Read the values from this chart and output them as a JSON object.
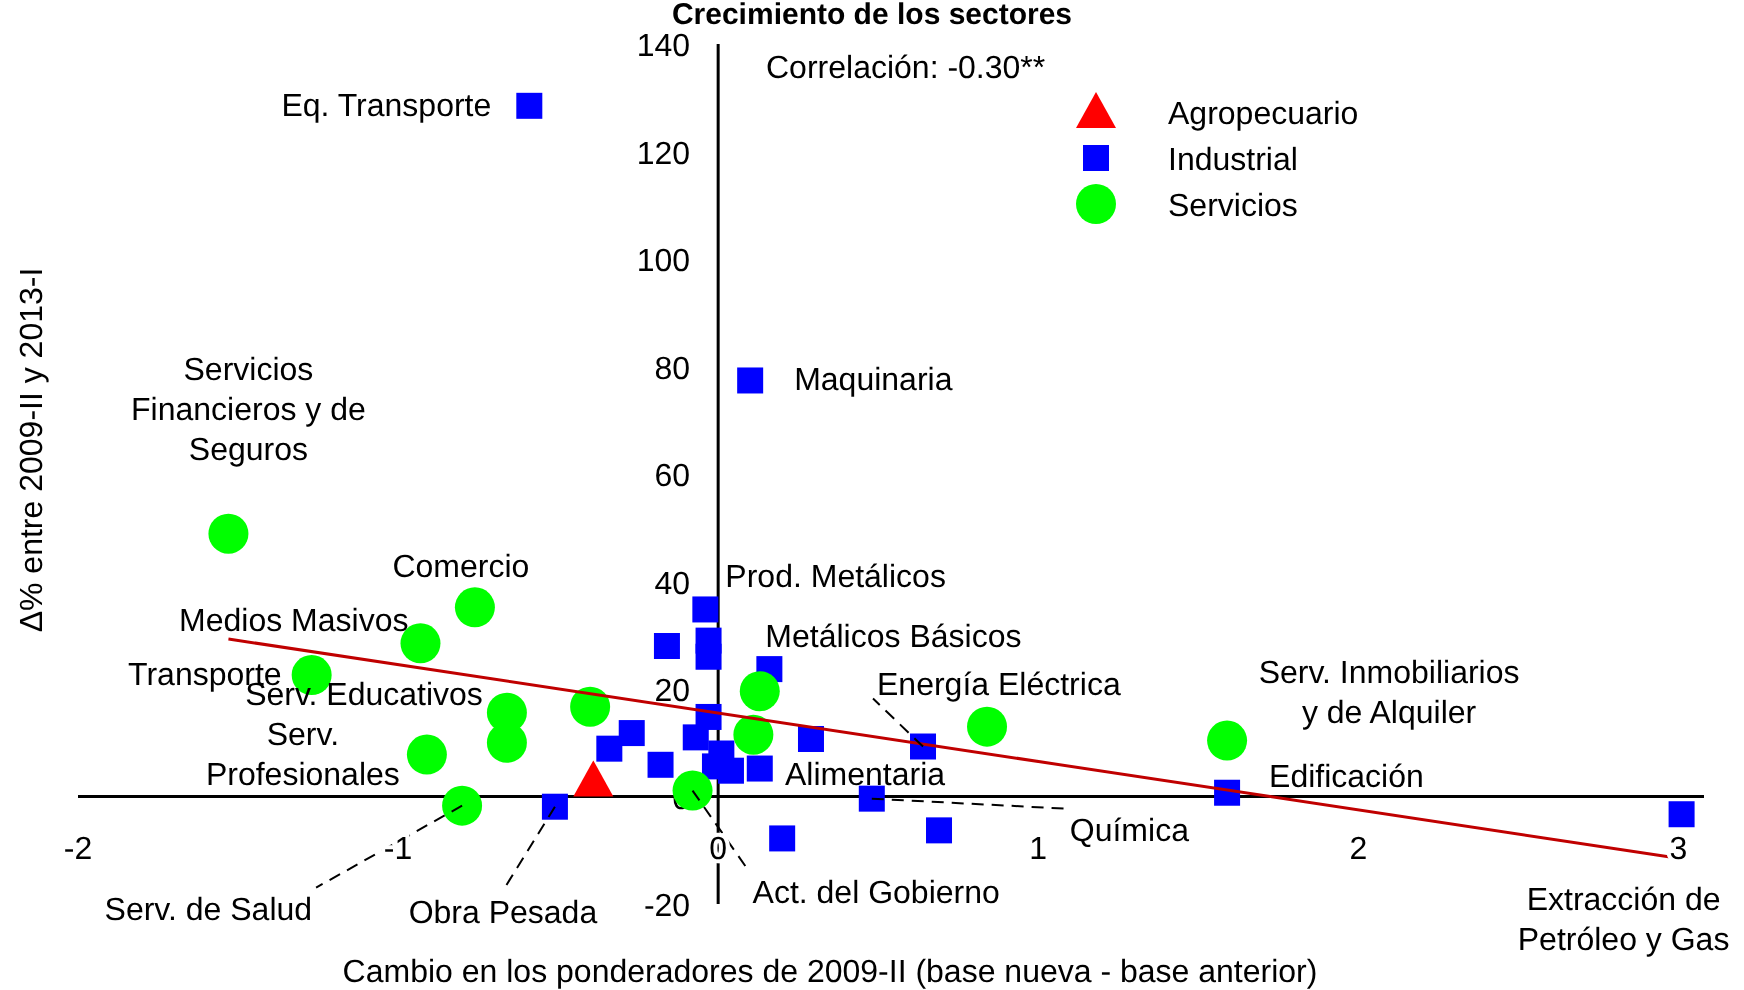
{
  "chart_data": {
    "type": "scatter",
    "title": "Crecimiento de los sectores",
    "xlabel": "Cambio  en los ponderadores de 2009-II (base nueva - base anterior)",
    "ylabel": "Δ% entre 2009-II y 2013-I",
    "xlim": [
      -2,
      3.08
    ],
    "ylim": [
      -20,
      140
    ],
    "xticks": [
      -2,
      -1,
      0,
      1,
      2,
      3
    ],
    "yticks": [
      -20,
      0,
      20,
      40,
      60,
      80,
      100,
      120,
      140
    ],
    "grid": false,
    "legend": "top right",
    "series": [
      {
        "name": "Agropecuario",
        "color": "#ff0000",
        "marker": "triangle",
        "x": [
          -0.39
        ],
        "values": [
          3
        ]
      },
      {
        "name": "Industrial",
        "color": "#0000ff",
        "marker": "square",
        "x": [
          -0.59,
          0.1,
          -0.04,
          -0.16,
          -0.03,
          -0.03,
          0.16,
          -0.03,
          -0.07,
          -0.27,
          -0.34,
          -0.18,
          0.01,
          0.04,
          0.13,
          -0.01,
          -0.51,
          0.2,
          0.29,
          0.48,
          0.69,
          0.64,
          1.59,
          3.01
        ],
        "values": [
          128.5,
          77.4,
          34.8,
          28,
          29,
          26,
          23.7,
          14.8,
          11,
          11.8,
          8.9,
          5.9,
          8,
          4.8,
          5.2,
          5.6,
          -1.9,
          -7.8,
          10.7,
          -0.4,
          -6.3,
          9.3,
          0.7,
          -3.3
        ]
      },
      {
        "name": "Servicios",
        "color": "#00ff00",
        "marker": "circle",
        "x": [
          -1.53,
          -0.76,
          -0.93,
          -1.27,
          -0.66,
          -0.66,
          -0.91,
          -0.8,
          -0.4,
          -0.08,
          0.13,
          0.11,
          0.84,
          1.59
        ],
        "values": [
          48.9,
          35.2,
          28.5,
          22.6,
          15.6,
          10,
          7.8,
          -1.7,
          16.7,
          1.1,
          19.6,
          11.5,
          13,
          10.4
        ]
      },
      {
        "type": "line",
        "color": "#c00000",
        "marker": "none",
        "x": [
          -1.53,
          3
        ],
        "values": [
          29.3,
          -11.5
        ]
      }
    ],
    "annotations": [
      "Correlación: -0.30**",
      {
        "text": "Eq. Transporte",
        "x": -0.59,
        "y": 128.5
      },
      {
        "text": "Maquinaria",
        "x": 0.1,
        "y": 77.4
      },
      {
        "text": "Servicios\nFinancieros y de\nSeguros",
        "x": -1.53,
        "y": 48.9
      },
      {
        "text": "Comercio",
        "x": -0.76,
        "y": 35.2
      },
      {
        "text": "Medios Masivos",
        "x": -0.93,
        "y": 28.5
      },
      {
        "text": "Transporte",
        "x": -1.27,
        "y": 22.6
      },
      {
        "text": "Serv. Educativos",
        "x": -0.66,
        "y": 15.6
      },
      {
        "text": "Serv.\nProfesionales",
        "x": -0.91,
        "y": 7.8
      },
      {
        "text": "Serv. de Salud",
        "x": -0.8,
        "y": -1.7
      },
      {
        "text": "Obra Pesada",
        "x": -0.51,
        "y": -1.9
      },
      {
        "text": "Act. del Gobierno",
        "x": -0.08,
        "y": 1.1
      },
      {
        "text": "Química",
        "x": 0.48,
        "y": -0.4
      },
      {
        "text": "Alimentaria",
        "x": 0.29,
        "y": 10.7
      },
      {
        "text": "Prod. Metálicos",
        "x": -0.04,
        "y": 34.8
      },
      {
        "text": "Metálicos Básicos",
        "x": 0.16,
        "y": 23.7
      },
      {
        "text": "Energía Eléctrica",
        "x": 0.64,
        "y": 9.3
      },
      {
        "text": "Serv. Inmobiliarios\ny de Alquiler",
        "x": 1.59,
        "y": 10.4
      },
      {
        "text": "Edificación",
        "x": 1.59,
        "y": 0.7
      },
      {
        "text": "Extracción de\nPetróleo y Gas",
        "x": 3.01,
        "y": -3.3
      }
    ]
  }
}
